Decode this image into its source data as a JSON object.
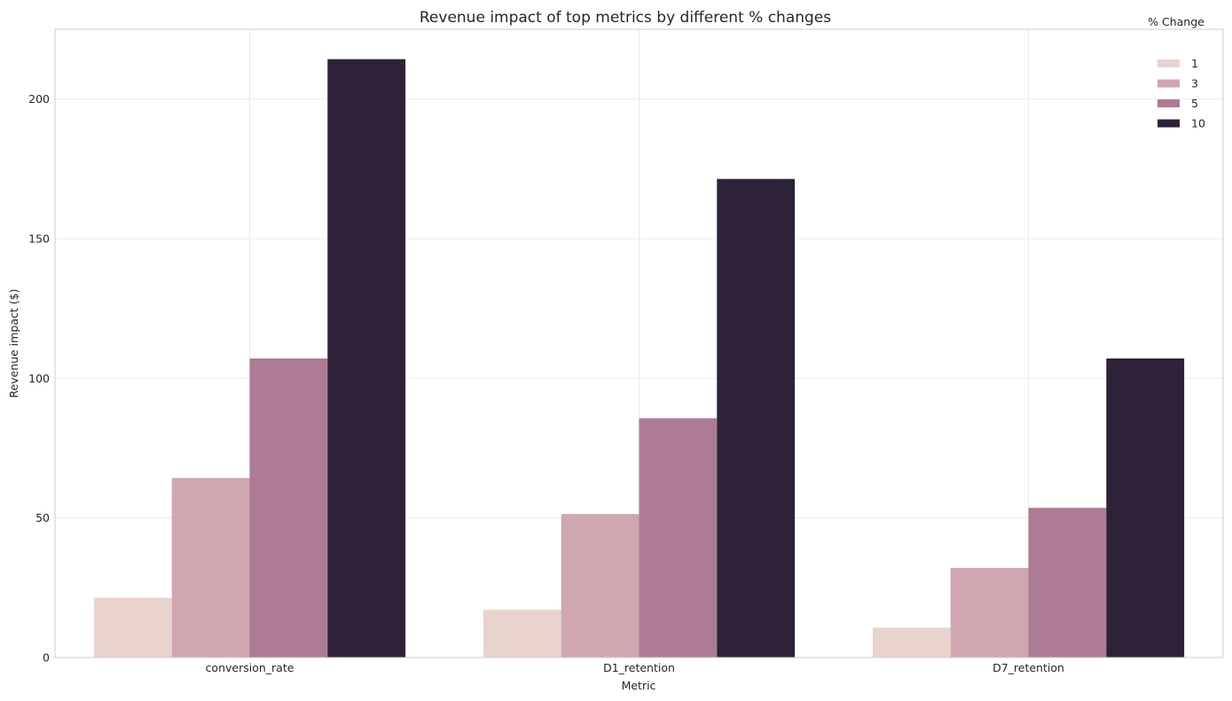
{
  "chart_data": {
    "type": "bar",
    "title": "Revenue impact of top metrics by different % changes",
    "xlabel": "Metric",
    "ylabel": "Revenue impact ($)",
    "categories": [
      "conversion_rate",
      "D1_retention",
      "D7_retention"
    ],
    "ylim": [
      0,
      225
    ],
    "yticks": [
      0,
      50,
      100,
      150,
      200
    ],
    "grid": true,
    "legend": {
      "title": "% Change",
      "position": "top-right"
    },
    "series": [
      {
        "name": "1",
        "color": "#e8d3cf",
        "values": [
          21.4,
          17.1,
          10.7
        ]
      },
      {
        "name": "3",
        "color": "#d0a7b0",
        "values": [
          64.3,
          51.4,
          32.1
        ]
      },
      {
        "name": "5",
        "color": "#ad7b95",
        "values": [
          107.1,
          85.7,
          53.6
        ]
      },
      {
        "name": "10",
        "color": "#2e2239",
        "values": [
          214.3,
          171.4,
          107.1
        ]
      }
    ]
  }
}
